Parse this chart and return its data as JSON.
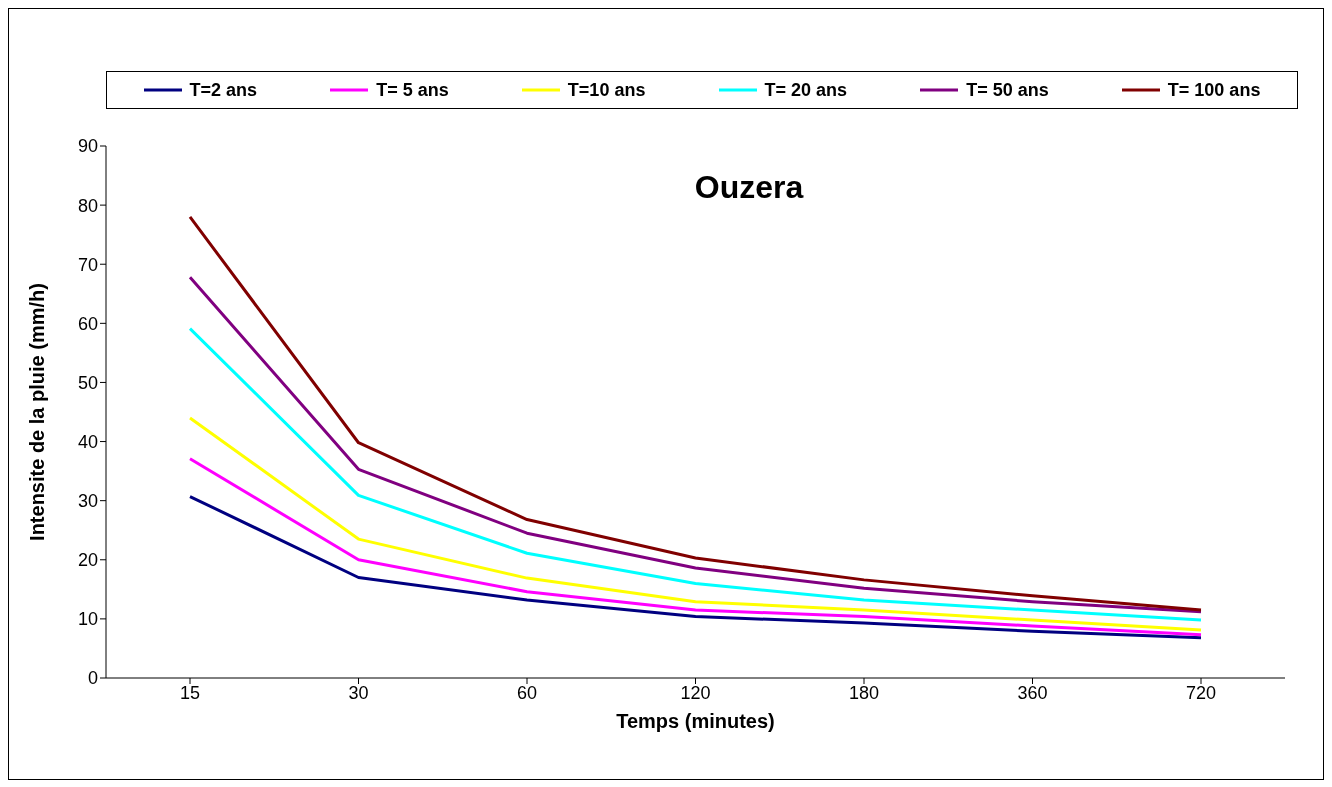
{
  "chart_data": {
    "type": "line",
    "title": "Ouzera",
    "xlabel": "Temps (minutes)",
    "ylabel": "Intensite de la pluie (mm/h)",
    "categories": [
      "15",
      "30",
      "60",
      "120",
      "180",
      "360",
      "720"
    ],
    "series": [
      {
        "name": "T=2 ans",
        "color": "#000080",
        "values": [
          30.7,
          17.0,
          13.2,
          10.4,
          9.3,
          7.9,
          6.8
        ]
      },
      {
        "name": "T= 5 ans",
        "color": "#ff00ff",
        "values": [
          37.1,
          20.0,
          14.6,
          11.5,
          10.4,
          8.8,
          7.3
        ]
      },
      {
        "name": "T=10 ans",
        "color": "#ffff00",
        "values": [
          44.0,
          23.5,
          16.9,
          12.9,
          11.5,
          9.8,
          8.1
        ]
      },
      {
        "name": "T= 20 ans",
        "color": "#00ffff",
        "values": [
          59.1,
          30.9,
          21.1,
          16.0,
          13.2,
          11.5,
          9.8
        ]
      },
      {
        "name": "T= 50 ans",
        "color": "#800080",
        "values": [
          67.8,
          35.3,
          24.5,
          18.6,
          15.2,
          12.9,
          11.2
        ]
      },
      {
        "name": "T= 100 ans",
        "color": "#800000",
        "values": [
          78.0,
          39.8,
          26.8,
          20.3,
          16.6,
          13.9,
          11.5
        ]
      }
    ],
    "ylim": [
      0,
      90
    ],
    "yticks": [
      0,
      10,
      20,
      30,
      40,
      50,
      60,
      70,
      80,
      90
    ],
    "grid": false,
    "legend": "top",
    "marker": "none",
    "line_style": "solid"
  }
}
